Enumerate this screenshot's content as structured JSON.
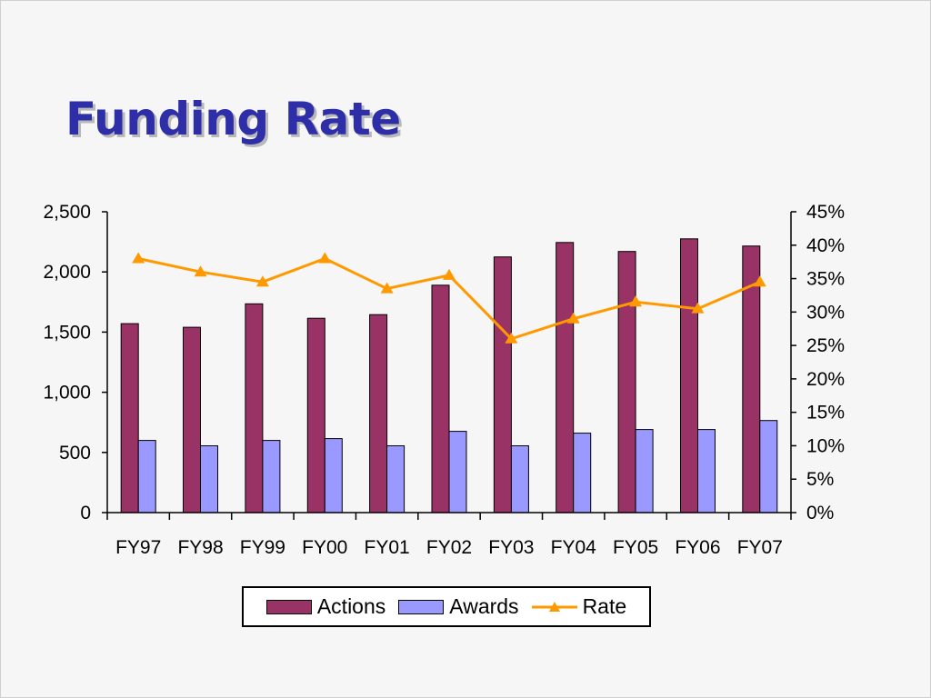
{
  "slide": {
    "title": "Funding Rate"
  },
  "colors": {
    "title": "#2e2ea8",
    "actions": "#993366",
    "awards": "#9999ff",
    "rate": "#ff9900"
  },
  "chart_data": {
    "type": "bar",
    "categories": [
      "FY97",
      "FY98",
      "FY99",
      "FY00",
      "FY01",
      "FY02",
      "FY03",
      "FY04",
      "FY05",
      "FY06",
      "FY07"
    ],
    "series": [
      {
        "name": "Actions",
        "type": "bar",
        "axis": "left",
        "values": [
          1570,
          1540,
          1735,
          1615,
          1645,
          1890,
          2125,
          2245,
          2170,
          2275,
          2215
        ]
      },
      {
        "name": "Awards",
        "type": "bar",
        "axis": "left",
        "values": [
          600,
          555,
          600,
          615,
          555,
          675,
          555,
          660,
          690,
          690,
          765
        ]
      },
      {
        "name": "Rate",
        "type": "line",
        "axis": "right",
        "values": [
          0.38,
          0.36,
          0.345,
          0.38,
          0.335,
          0.355,
          0.26,
          0.29,
          0.315,
          0.305,
          0.345
        ]
      }
    ],
    "y_left": {
      "lim": [
        0,
        2500
      ],
      "ticks": [
        0,
        500,
        1000,
        1500,
        2000,
        2500
      ],
      "tick_labels": [
        "0",
        "500",
        "1,000",
        "1,500",
        "2,000",
        "2,500"
      ]
    },
    "y_right": {
      "lim": [
        0,
        0.45
      ],
      "ticks": [
        0,
        0.05,
        0.1,
        0.15,
        0.2,
        0.25,
        0.3,
        0.35,
        0.4,
        0.45
      ],
      "tick_labels": [
        "0%",
        "5%",
        "10%",
        "15%",
        "20%",
        "25%",
        "30%",
        "35%",
        "40%",
        "45%"
      ]
    },
    "legend": {
      "placement": "bottom",
      "entries": [
        "Actions",
        "Awards",
        "Rate"
      ]
    },
    "grid": false
  }
}
